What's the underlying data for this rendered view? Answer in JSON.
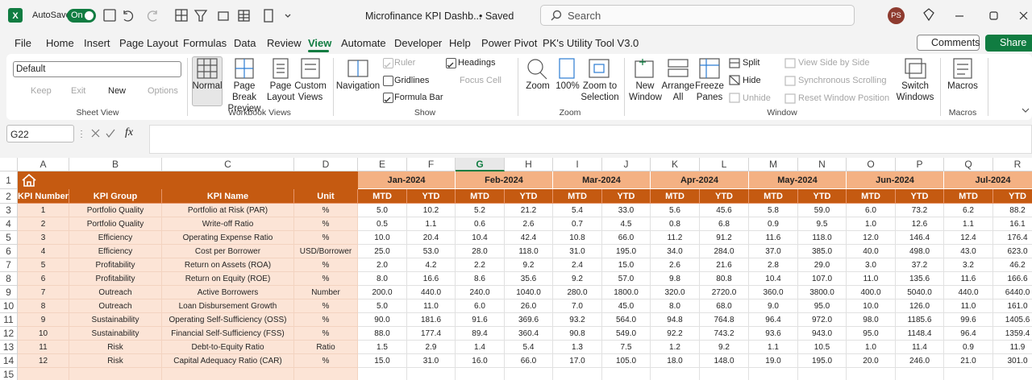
{
  "title_bar": {
    "autosave": "AutoSave",
    "toggle": "On",
    "file_name": "Microfinance KPI Dashb...",
    "status": "• Saved",
    "search": "Search",
    "user": "PS"
  },
  "menu": {
    "tabs": [
      "File",
      "Home",
      "Insert",
      "Page Layout",
      "Formulas",
      "Data",
      "Review",
      "View",
      "Automate",
      "Developer",
      "Help",
      "Power Pivot",
      "PK's Utility Tool V3.0"
    ],
    "comments": "Comments",
    "share": "Share"
  },
  "ribbon": {
    "sheet_view": {
      "dropdown": "Default",
      "items": [
        "Keep",
        "Exit",
        "New",
        "Options"
      ],
      "label": "Sheet View"
    },
    "workbook_views": {
      "items": [
        "Normal",
        "Page Break Preview",
        "Page Layout",
        "Custom Views"
      ],
      "label": "Workbook Views"
    },
    "show": {
      "items": [
        "Navigation",
        "Ruler",
        "Gridlines",
        "Formula Bar",
        "Headings",
        "Focus Cell"
      ],
      "label": "Show"
    },
    "zoom": {
      "items": [
        "Zoom",
        "100%",
        "Zoom to Selection"
      ],
      "label": "Zoom"
    },
    "window": {
      "items": [
        "New Window",
        "Arrange All",
        "Freeze Panes",
        "Split",
        "Hide",
        "Unhide",
        "View Side by Side",
        "Synchronous Scrolling",
        "Reset Window Position",
        "Switch Windows"
      ],
      "label": "Window"
    },
    "macros": {
      "items": [
        "Macros"
      ],
      "label": "Macros"
    }
  },
  "formula_bar": {
    "name_box": "G22",
    "fx": "fx"
  },
  "sheet": {
    "columns": [
      "A",
      "B",
      "C",
      "D",
      "E",
      "F",
      "G",
      "H",
      "I",
      "J",
      "K",
      "L",
      "M",
      "N",
      "O",
      "P",
      "Q",
      "R"
    ],
    "rows": [
      "1",
      "2",
      "3",
      "4",
      "5",
      "6",
      "7",
      "8",
      "9",
      "10",
      "11",
      "12",
      "13",
      "14",
      "15"
    ],
    "months": [
      "Jan-2024",
      "Feb-2024",
      "Mar-2024",
      "Apr-2024",
      "May-2024",
      "Jun-2024",
      "Jul-2024"
    ],
    "header": [
      "KPI Number",
      "KPI Group",
      "KPI Name",
      "Unit"
    ],
    "measures": [
      "MTD",
      "YTD"
    ],
    "data": [
      [
        "1",
        "Portfolio Quality",
        "Portfolio at Risk (PAR)",
        "%",
        "5.0",
        "10.2",
        "5.2",
        "21.2",
        "5.4",
        "33.0",
        "5.6",
        "45.6",
        "5.8",
        "59.0",
        "6.0",
        "73.2",
        "6.2",
        "88.2"
      ],
      [
        "2",
        "Portfolio Quality",
        "Write-off Ratio",
        "%",
        "0.5",
        "1.1",
        "0.6",
        "2.6",
        "0.7",
        "4.5",
        "0.8",
        "6.8",
        "0.9",
        "9.5",
        "1.0",
        "12.6",
        "1.1",
        "16.1"
      ],
      [
        "3",
        "Efficiency",
        "Operating Expense Ratio",
        "%",
        "10.0",
        "20.4",
        "10.4",
        "42.4",
        "10.8",
        "66.0",
        "11.2",
        "91.2",
        "11.6",
        "118.0",
        "12.0",
        "146.4",
        "12.4",
        "176.4"
      ],
      [
        "4",
        "Efficiency",
        "Cost per Borrower",
        "USD/Borrower",
        "25.0",
        "53.0",
        "28.0",
        "118.0",
        "31.0",
        "195.0",
        "34.0",
        "284.0",
        "37.0",
        "385.0",
        "40.0",
        "498.0",
        "43.0",
        "623.0"
      ],
      [
        "5",
        "Profitability",
        "Return on Assets (ROA)",
        "%",
        "2.0",
        "4.2",
        "2.2",
        "9.2",
        "2.4",
        "15.0",
        "2.6",
        "21.6",
        "2.8",
        "29.0",
        "3.0",
        "37.2",
        "3.2",
        "46.2"
      ],
      [
        "6",
        "Profitability",
        "Return on Equity (ROE)",
        "%",
        "8.0",
        "16.6",
        "8.6",
        "35.6",
        "9.2",
        "57.0",
        "9.8",
        "80.8",
        "10.4",
        "107.0",
        "11.0",
        "135.6",
        "11.6",
        "166.6"
      ],
      [
        "7",
        "Outreach",
        "Active Borrowers",
        "Number",
        "200.0",
        "440.0",
        "240.0",
        "1040.0",
        "280.0",
        "1800.0",
        "320.0",
        "2720.0",
        "360.0",
        "3800.0",
        "400.0",
        "5040.0",
        "440.0",
        "6440.0"
      ],
      [
        "8",
        "Outreach",
        "Loan Disbursement Growth",
        "%",
        "5.0",
        "11.0",
        "6.0",
        "26.0",
        "7.0",
        "45.0",
        "8.0",
        "68.0",
        "9.0",
        "95.0",
        "10.0",
        "126.0",
        "11.0",
        "161.0"
      ],
      [
        "9",
        "Sustainability",
        "Operating Self-Sufficiency (OSS)",
        "%",
        "90.0",
        "181.6",
        "91.6",
        "369.6",
        "93.2",
        "564.0",
        "94.8",
        "764.8",
        "96.4",
        "972.0",
        "98.0",
        "1185.6",
        "99.6",
        "1405.6"
      ],
      [
        "10",
        "Sustainability",
        "Financial Self-Sufficiency (FSS)",
        "%",
        "88.0",
        "177.4",
        "89.4",
        "360.4",
        "90.8",
        "549.0",
        "92.2",
        "743.2",
        "93.6",
        "943.0",
        "95.0",
        "1148.4",
        "96.4",
        "1359.4"
      ],
      [
        "11",
        "Risk",
        "Debt-to-Equity Ratio",
        "Ratio",
        "1.5",
        "2.9",
        "1.4",
        "5.4",
        "1.3",
        "7.5",
        "1.2",
        "9.2",
        "1.1",
        "10.5",
        "1.0",
        "11.4",
        "0.9",
        "11.9"
      ],
      [
        "12",
        "Risk",
        "Capital Adequacy Ratio (CAR)",
        "%",
        "15.0",
        "31.0",
        "16.0",
        "66.0",
        "17.0",
        "105.0",
        "18.0",
        "148.0",
        "19.0",
        "195.0",
        "20.0",
        "246.0",
        "21.0",
        "301.0"
      ]
    ]
  }
}
